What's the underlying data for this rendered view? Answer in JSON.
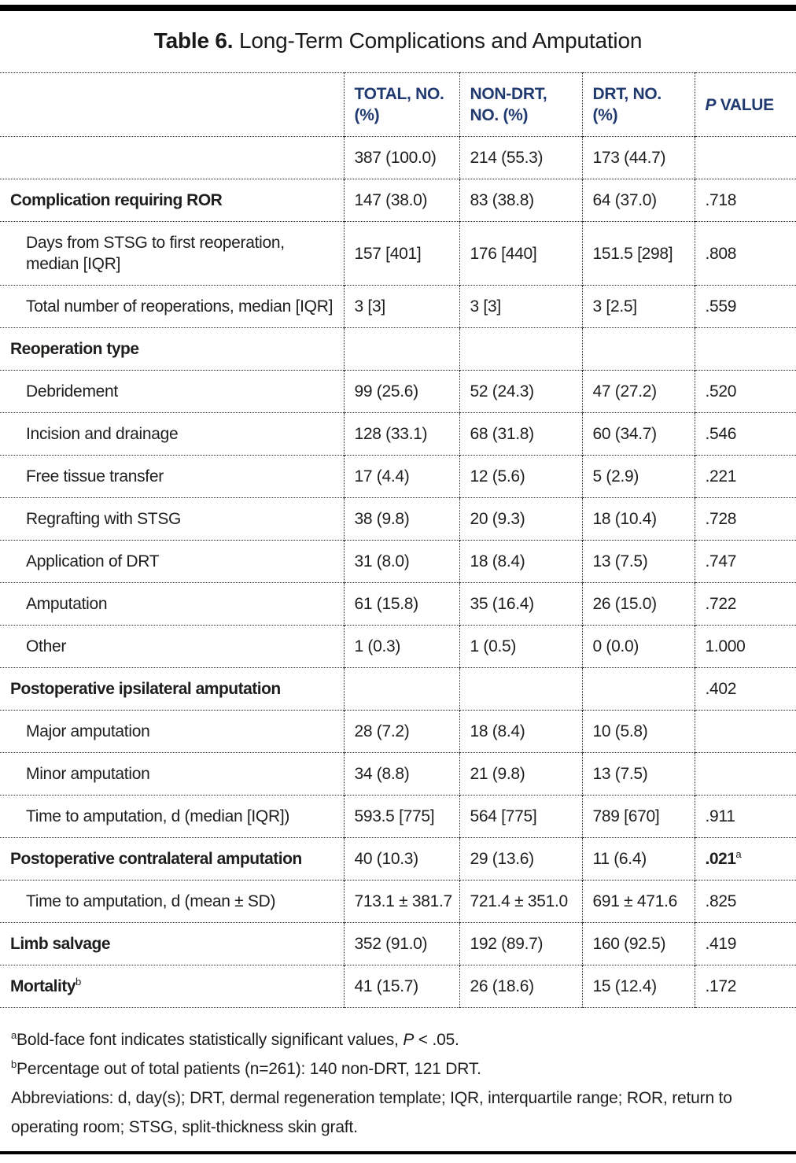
{
  "title": {
    "label": "Table 6.",
    "text": " Long-Term Complications and Amputation"
  },
  "colors": {
    "header_text": "#203a70",
    "body_text": "#1e1e1c",
    "rule": "#000000",
    "dotted_border": "#2a2a2a"
  },
  "header": {
    "total": "TOTAL, NO. (%)",
    "nondrt": "NON-DRT, NO. (%)",
    "drt": "DRT, NO. (%)",
    "p_italic": "P",
    "p_rest": " VALUE"
  },
  "rows": [
    {
      "label": "",
      "sup": "",
      "indent": 0,
      "bold": false,
      "total": "387 (100.0)",
      "nondrt": "214 (55.3)",
      "drt": "173 (44.7)",
      "p": "",
      "p_sup": "",
      "p_bold": false
    },
    {
      "label": "Complication requiring ROR",
      "sup": "",
      "indent": 0,
      "bold": true,
      "total": "147 (38.0)",
      "nondrt": "83 (38.8)",
      "drt": "64 (37.0)",
      "p": ".718",
      "p_sup": "",
      "p_bold": false
    },
    {
      "label": "Days from STSG to first reoperation, median [IQR]",
      "sup": "",
      "indent": 1,
      "bold": false,
      "total": "157 [401]",
      "nondrt": "176 [440]",
      "drt": "151.5 [298]",
      "p": ".808",
      "p_sup": "",
      "p_bold": false
    },
    {
      "label": "Total number of reoperations, median [IQR]",
      "sup": "",
      "indent": 1,
      "bold": false,
      "total": "3 [3]",
      "nondrt": "3 [3]",
      "drt": "3 [2.5]",
      "p": ".559",
      "p_sup": "",
      "p_bold": false
    },
    {
      "label": "Reoperation type",
      "sup": "",
      "indent": 0,
      "bold": true,
      "total": "",
      "nondrt": "",
      "drt": "",
      "p": "",
      "p_sup": "",
      "p_bold": false
    },
    {
      "label": "Debridement",
      "sup": "",
      "indent": 1,
      "bold": false,
      "total": "99 (25.6)",
      "nondrt": "52 (24.3)",
      "drt": "47 (27.2)",
      "p": ".520",
      "p_sup": "",
      "p_bold": false
    },
    {
      "label": "Incision and drainage",
      "sup": "",
      "indent": 1,
      "bold": false,
      "total": "128 (33.1)",
      "nondrt": "68 (31.8)",
      "drt": "60 (34.7)",
      "p": ".546",
      "p_sup": "",
      "p_bold": false
    },
    {
      "label": "Free tissue transfer",
      "sup": "",
      "indent": 1,
      "bold": false,
      "total": "17 (4.4)",
      "nondrt": "12 (5.6)",
      "drt": "5 (2.9)",
      "p": ".221",
      "p_sup": "",
      "p_bold": false
    },
    {
      "label": "Regrafting with STSG",
      "sup": "",
      "indent": 1,
      "bold": false,
      "total": "38 (9.8)",
      "nondrt": "20 (9.3)",
      "drt": "18 (10.4)",
      "p": ".728",
      "p_sup": "",
      "p_bold": false
    },
    {
      "label": "Application of DRT",
      "sup": "",
      "indent": 1,
      "bold": false,
      "total": "31 (8.0)",
      "nondrt": "18 (8.4)",
      "drt": "13 (7.5)",
      "p": ".747",
      "p_sup": "",
      "p_bold": false
    },
    {
      "label": "Amputation",
      "sup": "",
      "indent": 1,
      "bold": false,
      "total": "61 (15.8)",
      "nondrt": "35 (16.4)",
      "drt": "26 (15.0)",
      "p": ".722",
      "p_sup": "",
      "p_bold": false
    },
    {
      "label": "Other",
      "sup": "",
      "indent": 1,
      "bold": false,
      "total": "1 (0.3)",
      "nondrt": "1 (0.5)",
      "drt": "0 (0.0)",
      "p": "1.000",
      "p_sup": "",
      "p_bold": false
    },
    {
      "label": "Postoperative ipsilateral amputation",
      "sup": "",
      "indent": 0,
      "bold": true,
      "total": "",
      "nondrt": "",
      "drt": "",
      "p": ".402",
      "p_sup": "",
      "p_bold": false
    },
    {
      "label": "Major amputation",
      "sup": "",
      "indent": 1,
      "bold": false,
      "total": "28 (7.2)",
      "nondrt": "18 (8.4)",
      "drt": "10 (5.8)",
      "p": "",
      "p_sup": "",
      "p_bold": false
    },
    {
      "label": "Minor amputation",
      "sup": "",
      "indent": 1,
      "bold": false,
      "total": "34 (8.8)",
      "nondrt": "21 (9.8)",
      "drt": "13 (7.5)",
      "p": "",
      "p_sup": "",
      "p_bold": false
    },
    {
      "label": "Time to amputation, d (median [IQR])",
      "sup": "",
      "indent": 1,
      "bold": false,
      "total": "593.5 [775]",
      "nondrt": "564 [775]",
      "drt": "789 [670]",
      "p": ".911",
      "p_sup": "",
      "p_bold": false
    },
    {
      "label": "Postoperative contralateral amputation",
      "sup": "",
      "indent": 0,
      "bold": true,
      "total": "40 (10.3)",
      "nondrt": "29 (13.6)",
      "drt": "11 (6.4)",
      "p": ".021",
      "p_sup": "a",
      "p_bold": true
    },
    {
      "label": "Time to amputation, d (mean ± SD)",
      "sup": "",
      "indent": 1,
      "bold": false,
      "total": "713.1 ± 381.7",
      "nondrt": "721.4 ± 351.0",
      "drt": "691 ± 471.6",
      "p": ".825",
      "p_sup": "",
      "p_bold": false
    },
    {
      "label": "Limb salvage",
      "sup": "",
      "indent": 0,
      "bold": true,
      "total": "352 (91.0)",
      "nondrt": "192 (89.7)",
      "drt": "160 (92.5)",
      "p": ".419",
      "p_sup": "",
      "p_bold": false
    },
    {
      "label": "Mortality",
      "sup": "b",
      "indent": 0,
      "bold": true,
      "total": "41 (15.7)",
      "nondrt": "26 (18.6)",
      "drt": "15 (12.4)",
      "p": ".172",
      "p_sup": "",
      "p_bold": false
    }
  ],
  "footnotes": [
    {
      "sup": "a",
      "segments": [
        {
          "text": "Bold-face font indicates statistically significant values, ",
          "italic": false
        },
        {
          "text": "P",
          "italic": true
        },
        {
          "text": " < .05.",
          "italic": false
        }
      ]
    },
    {
      "sup": "b",
      "segments": [
        {
          "text": "Percentage out of total patients (n=261): 140 non-DRT, 121 DRT.",
          "italic": false
        }
      ]
    },
    {
      "sup": "",
      "segments": [
        {
          "text": "Abbreviations: d, day(s); DRT, dermal regeneration template; IQR, interquartile range; ROR, return to operating room; STSG, split-thickness skin graft.",
          "italic": false
        }
      ]
    }
  ]
}
